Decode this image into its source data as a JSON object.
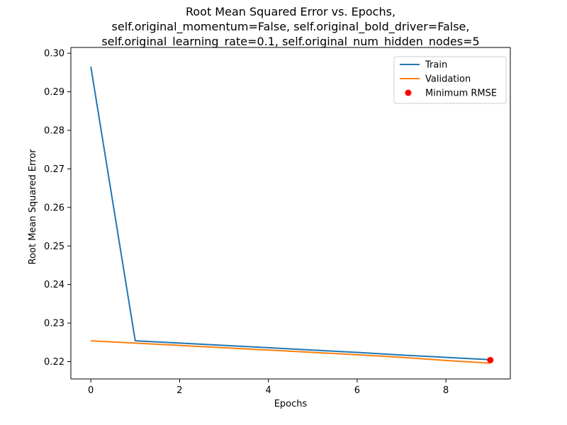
{
  "chart_data": {
    "type": "line",
    "title_lines": [
      "Root Mean Squared Error vs. Epochs,",
      "self.original_momentum=False, self.original_bold_driver=False,",
      "self.original_learning_rate=0.1, self.original_num_hidden_nodes=5"
    ],
    "xlabel": "Epochs",
    "ylabel": "Root Mean Squared Error",
    "xlim": [
      -0.45,
      9.45
    ],
    "ylim": [
      0.2155,
      0.3015
    ],
    "xticks": [
      0,
      2,
      4,
      6,
      8
    ],
    "xtick_labels": [
      "0",
      "2",
      "4",
      "6",
      "8"
    ],
    "yticks": [
      0.22,
      0.23,
      0.24,
      0.25,
      0.26,
      0.27,
      0.28,
      0.29,
      0.3
    ],
    "ytick_labels": [
      "0.22",
      "0.23",
      "0.24",
      "0.25",
      "0.26",
      "0.27",
      "0.28",
      "0.29",
      "0.30"
    ],
    "grid": false,
    "legend_position": "top-right",
    "x": [
      0,
      1,
      2,
      3,
      4,
      5,
      6,
      7,
      8,
      9
    ],
    "series": [
      {
        "name": "Train",
        "color": "#1f77b4",
        "values": [
          0.2965,
          0.2254,
          0.2248,
          0.2242,
          0.2236,
          0.223,
          0.2224,
          0.2217,
          0.2211,
          0.2205
        ]
      },
      {
        "name": "Validation",
        "color": "#ff7f0e",
        "values": [
          0.2254,
          0.2248,
          0.2242,
          0.2236,
          0.223,
          0.2224,
          0.2218,
          0.2211,
          0.2203,
          0.2196
        ]
      }
    ],
    "markers": [
      {
        "name": "Minimum RMSE",
        "color": "#ff0000",
        "x": 9,
        "y": 0.2204
      }
    ]
  }
}
